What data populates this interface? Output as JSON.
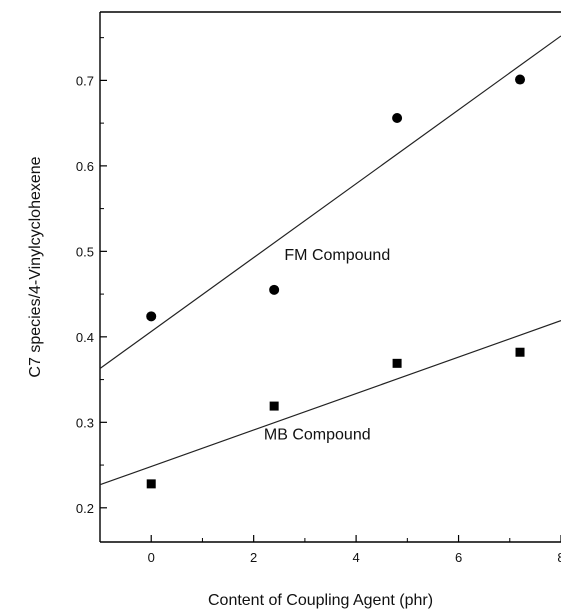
{
  "chart_data": {
    "type": "scatter",
    "xlabel": "Content of Coupling Agent (phr)",
    "ylabel": "C7 species/4-Vinylcyclohexene",
    "xlim": [
      -1,
      8
    ],
    "ylim": [
      0.16,
      0.78
    ],
    "x_ticks": [
      0,
      2,
      4,
      6,
      8
    ],
    "x_tick_labels": [
      "0",
      "2",
      "4",
      "6",
      "8"
    ],
    "y_ticks": [
      0.2,
      0.3,
      0.4,
      0.5,
      0.6,
      0.7
    ],
    "y_tick_labels": [
      "0.2",
      "0.3",
      "0.4",
      "0.5",
      "0.6",
      "0.7"
    ],
    "grid": false,
    "legend": "none",
    "series": [
      {
        "marker": "circle",
        "x": [
          0,
          2.4,
          4.8,
          7.2
        ],
        "y": [
          0.424,
          0.455,
          0.656,
          0.701
        ],
        "fit": [
          [
            -1,
            0.363
          ],
          [
            8,
            0.752
          ]
        ]
      },
      {
        "marker": "square",
        "x": [
          0,
          2.4,
          4.8,
          7.2
        ],
        "y": [
          0.228,
          0.319,
          0.369,
          0.382
        ],
        "fit": [
          [
            -1,
            0.227
          ],
          [
            8,
            0.419
          ]
        ]
      }
    ],
    "annotations": [
      {
        "text": "FM Compound",
        "x": 2.6,
        "y": 0.49
      },
      {
        "text": "MB Compound",
        "x": 2.2,
        "y": 0.28
      }
    ]
  }
}
